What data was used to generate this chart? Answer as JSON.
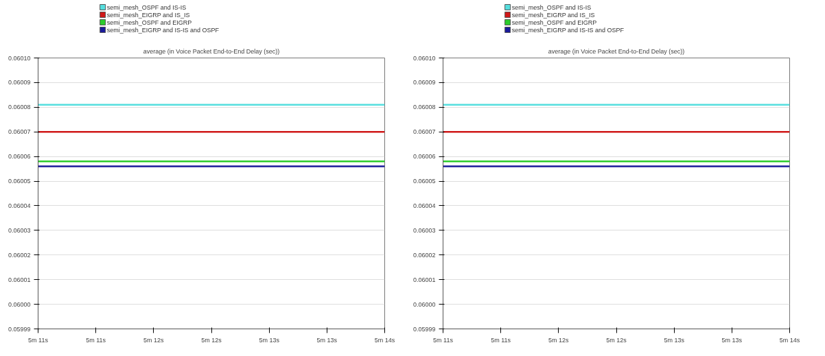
{
  "chart_data": [
    {
      "type": "line",
      "title": "average (in Voice Packet End-to-End Delay (sec))",
      "categories": [
        "5m 11s",
        "5m 11s",
        "5m 12s",
        "5m 12s",
        "5m 13s",
        "5m 13s",
        "5m 14s"
      ],
      "series": [
        {
          "name": "semi_mesh_OSPF and IS-IS",
          "color": "#55dede",
          "values": [
            0.060081,
            0.060081,
            0.060081,
            0.060081,
            0.060081,
            0.060081,
            0.060081
          ]
        },
        {
          "name": "semi_mesh_EIGRP and IS_IS",
          "color": "#d01818",
          "values": [
            0.06007,
            0.06007,
            0.06007,
            0.06007,
            0.06007,
            0.06007,
            0.06007
          ]
        },
        {
          "name": "semi_mesh_OSPF and EIGRP",
          "color": "#2ccc2c",
          "values": [
            0.060058,
            0.060058,
            0.060058,
            0.060058,
            0.060058,
            0.060058,
            0.060058
          ]
        },
        {
          "name": "semi_mesh_EIGRP and IS-IS and OSPF",
          "color": "#1a1a9a",
          "values": [
            0.060056,
            0.060056,
            0.060056,
            0.060056,
            0.060056,
            0.060056,
            0.060056
          ]
        }
      ],
      "ylim": [
        0.05999,
        0.0601
      ],
      "yticks": [
        {
          "value": 0.05999,
          "label": "0.05999"
        },
        {
          "value": 0.06,
          "label": "0.06000"
        },
        {
          "value": 0.06001,
          "label": "0.06001"
        },
        {
          "value": 0.06002,
          "label": "0.06002"
        },
        {
          "value": 0.06003,
          "label": "0.06003"
        },
        {
          "value": 0.06004,
          "label": "0.06004"
        },
        {
          "value": 0.06005,
          "label": "0.06005"
        },
        {
          "value": 0.06006,
          "label": "0.06006"
        },
        {
          "value": 0.06007,
          "label": "0.06007"
        },
        {
          "value": 0.06008,
          "label": "0.06008"
        },
        {
          "value": 0.06009,
          "label": "0.06009"
        },
        {
          "value": 0.0601,
          "label": "0.06010"
        }
      ],
      "grid": "y",
      "legend": "top",
      "marker": "none",
      "line_style": "solid"
    },
    {
      "type": "line",
      "title": "average (in Voice Packet End-to-End Delay (sec))",
      "categories": [
        "5m 11s",
        "5m 11s",
        "5m 12s",
        "5m 12s",
        "5m 13s",
        "5m 13s",
        "5m 14s"
      ],
      "series": [
        {
          "name": "semi_mesh_OSPF and IS-IS",
          "color": "#55dede",
          "values": [
            0.060081,
            0.060081,
            0.060081,
            0.060081,
            0.060081,
            0.060081,
            0.060081
          ]
        },
        {
          "name": "semi_mesh_EIGRP and IS_IS",
          "color": "#d01818",
          "values": [
            0.06007,
            0.06007,
            0.06007,
            0.06007,
            0.06007,
            0.06007,
            0.06007
          ]
        },
        {
          "name": "semi_mesh_OSPF and EIGRP",
          "color": "#2ccc2c",
          "values": [
            0.060058,
            0.060058,
            0.060058,
            0.060058,
            0.060058,
            0.060058,
            0.060058
          ]
        },
        {
          "name": "semi_mesh_EIGRP and IS-IS and OSPF",
          "color": "#1a1a9a",
          "values": [
            0.060056,
            0.060056,
            0.060056,
            0.060056,
            0.060056,
            0.060056,
            0.060056
          ]
        }
      ],
      "ylim": [
        0.05999,
        0.0601
      ],
      "yticks": [
        {
          "value": 0.05999,
          "label": "0.05999"
        },
        {
          "value": 0.06,
          "label": "0.06000"
        },
        {
          "value": 0.06001,
          "label": "0.06001"
        },
        {
          "value": 0.06002,
          "label": "0.06002"
        },
        {
          "value": 0.06003,
          "label": "0.06003"
        },
        {
          "value": 0.06004,
          "label": "0.06004"
        },
        {
          "value": 0.06005,
          "label": "0.06005"
        },
        {
          "value": 0.06006,
          "label": "0.06006"
        },
        {
          "value": 0.06007,
          "label": "0.06007"
        },
        {
          "value": 0.06008,
          "label": "0.06008"
        },
        {
          "value": 0.06009,
          "label": "0.06009"
        },
        {
          "value": 0.0601,
          "label": "0.06010"
        }
      ],
      "grid": "y",
      "legend": "top",
      "marker": "none",
      "line_style": "solid"
    }
  ]
}
